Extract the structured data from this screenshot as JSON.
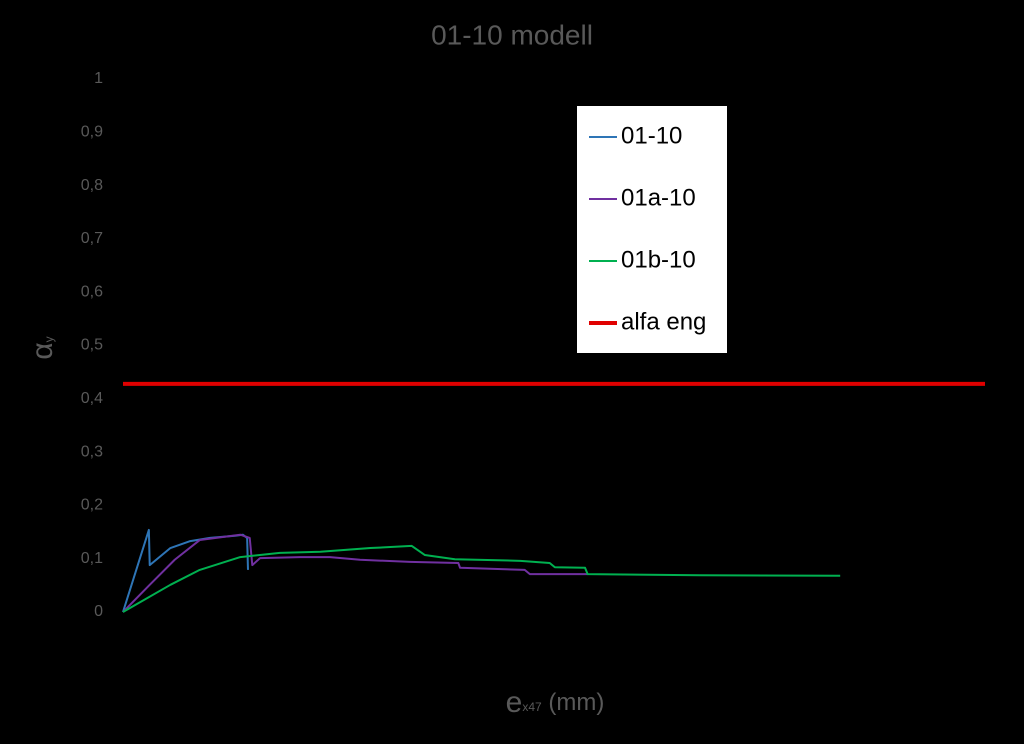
{
  "chart_data": {
    "type": "line",
    "title": "01-10 modell",
    "ylabel": {
      "main": "α",
      "sub": "y"
    },
    "xlabel": {
      "main": "e",
      "sub": "x47",
      "rest": " (mm)"
    },
    "xlim": [
      0,
      100
    ],
    "ylim": [
      0,
      1
    ],
    "yticks": [
      0,
      {
        "value": 0.1,
        "label": "0,1"
      },
      {
        "value": 0.2,
        "label": "0,2"
      },
      {
        "value": 0.3,
        "label": "0,3"
      },
      {
        "value": 0.4,
        "label": "0,4"
      },
      {
        "value": 0.5,
        "label": "0,5"
      },
      {
        "value": 0.6,
        "label": "0,6"
      },
      {
        "value": 0.7,
        "label": "0,7"
      },
      {
        "value": 0.8,
        "label": "0,8"
      },
      {
        "value": 0.9,
        "label": "0,9"
      },
      1
    ],
    "grid": false,
    "legend": "upper-center",
    "series": [
      {
        "name": "01-10",
        "color": "#2e75b6",
        "width": 2,
        "x": [
          0,
          3.0,
          3.1,
          5.5,
          7.8,
          10.1,
          13.0,
          13.9,
          14.4,
          14.5
        ],
        "values": [
          0,
          0.154,
          0.088,
          0.12,
          0.133,
          0.139,
          0.143,
          0.145,
          0.139,
          0.079
        ]
      },
      {
        "name": "01a-10",
        "color": "#7030a0",
        "width": 2,
        "x": [
          0,
          3.1,
          6.0,
          8.9,
          13.6,
          14.7,
          15.0,
          15.9,
          20.5,
          24.0,
          27.5,
          33.3,
          38.9,
          39.1,
          46.6,
          47.2,
          53.9
        ],
        "values": [
          0,
          0.051,
          0.098,
          0.135,
          0.145,
          0.139,
          0.088,
          0.101,
          0.103,
          0.103,
          0.098,
          0.094,
          0.092,
          0.083,
          0.079,
          0.071,
          0.071
        ]
      },
      {
        "name": "01b-10",
        "color": "#00b050",
        "width": 2,
        "x": [
          0,
          5.5,
          8.9,
          13.6,
          18.2,
          22.9,
          28.7,
          33.5,
          35.0,
          38.5,
          46.1,
          49.5,
          50.1,
          53.6,
          53.9,
          66.9,
          83.2
        ],
        "values": [
          0,
          0.051,
          0.079,
          0.103,
          0.111,
          0.113,
          0.12,
          0.124,
          0.107,
          0.099,
          0.096,
          0.092,
          0.084,
          0.083,
          0.071,
          0.069,
          0.068
        ]
      },
      {
        "name": "alfa eng",
        "color": "#e00000",
        "width": 4,
        "x": [
          0,
          100
        ],
        "values": [
          0.428,
          0.428
        ]
      }
    ]
  }
}
